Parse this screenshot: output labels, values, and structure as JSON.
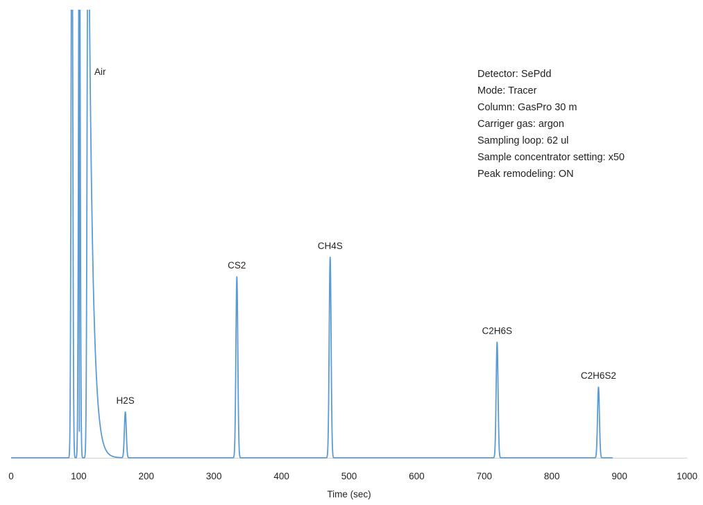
{
  "chart_data": {
    "type": "line",
    "title": "",
    "xlabel": "Time (sec)",
    "ylabel": "",
    "xlim": [
      0,
      1000
    ],
    "ylim": [
      0,
      100
    ],
    "x_ticks": [
      0,
      100,
      200,
      300,
      400,
      500,
      600,
      700,
      800,
      900,
      1000
    ],
    "grid": false,
    "legend": "none",
    "line_color": "#5b9bd5",
    "axis_color": "#d0d0d0",
    "series": [
      {
        "peaks": [
          {
            "label": "",
            "x": 90,
            "height": 140,
            "width": 1.2
          },
          {
            "label": "",
            "x": 101,
            "height": 140,
            "width": 1.2,
            "dip_to": 6
          },
          {
            "label": "Air",
            "x": 114,
            "height": 140,
            "width": 1.4,
            "tail": 6
          },
          {
            "label": "H2S",
            "x": 169,
            "height": 10.3,
            "width": 1.4
          },
          {
            "label": "CS2",
            "x": 334,
            "height": 40.7,
            "width": 1.4
          },
          {
            "label": "CH4S",
            "x": 472,
            "height": 45.1,
            "width": 1.4
          },
          {
            "label": "C2H6S",
            "x": 719,
            "height": 26,
            "width": 1.4
          },
          {
            "label": "C2H6S2",
            "x": 869,
            "height": 15.9,
            "width": 1.4
          }
        ],
        "x_end": 890
      }
    ],
    "annotations": [
      "Detector: SePdd",
      "Mode: Tracer",
      "Column: GasPro 30 m",
      "Carriger gas: argon",
      "Sampling loop: 62 ul",
      "Sample concentrator setting:  x50",
      "Peak remodeling: ON"
    ]
  }
}
